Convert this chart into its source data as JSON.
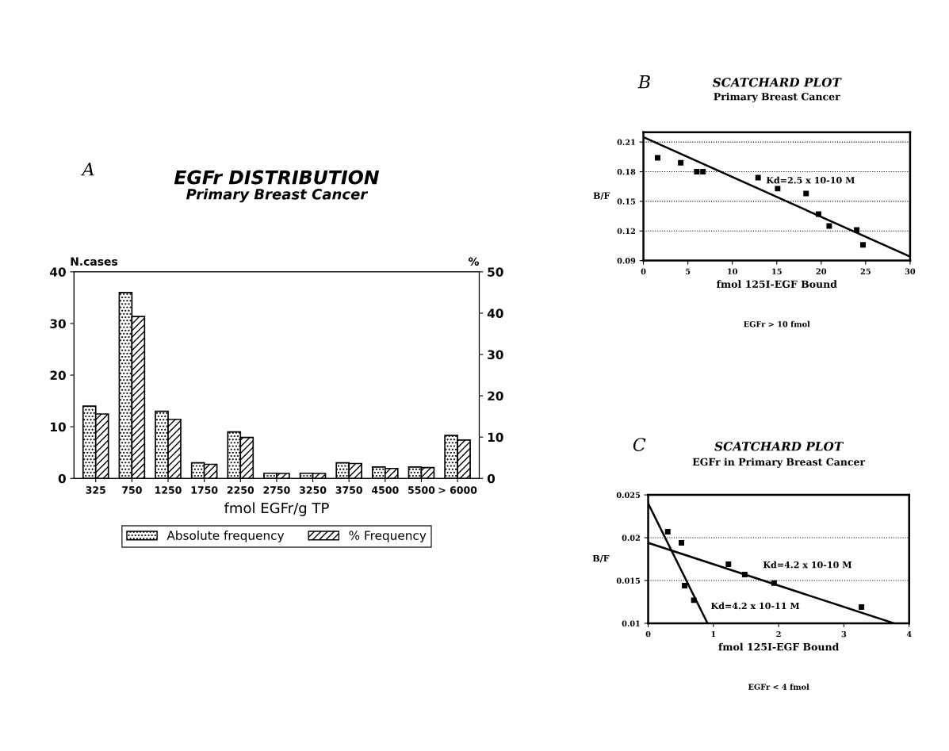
{
  "chart_data": [
    {
      "type": "bar",
      "title": "EGFr DISTRIBUTION",
      "subtitle": "Primary Breast Cancer",
      "annotations": [
        "A"
      ],
      "xlabel": "fmol EGFr/g TP",
      "ylabel": "N.cases",
      "y2label": "%",
      "categories": [
        "325",
        "750",
        "1250",
        "1750",
        "2250",
        "2750",
        "3250",
        "3750",
        "4500",
        "5500",
        "> 6000"
      ],
      "series": [
        {
          "name": "Absolute frequency",
          "color": "#000000",
          "values": [
            14,
            36,
            13,
            3,
            9,
            1,
            1,
            3,
            2.2,
            2.2,
            8.3
          ]
        },
        {
          "name": "% Frequency",
          "color": "#000000",
          "axis": "y2",
          "values": [
            15.6,
            39.2,
            14.3,
            3.4,
            9.9,
            1.2,
            1.2,
            3.6,
            2.4,
            2.6,
            9.3
          ]
        }
      ],
      "ylim": [
        0,
        40
      ],
      "yticks": [
        0,
        10,
        20,
        30,
        40
      ],
      "y2lim": [
        0,
        50
      ],
      "y2ticks": [
        0,
        10,
        20,
        30,
        40,
        50
      ],
      "legend": "bottom"
    },
    {
      "type": "scatter",
      "title": "SCATCHARD PLOT",
      "subtitle": "Primary Breast Cancer",
      "annotations": [
        "B",
        "EGFr > 10 fmol",
        "Kd=2.5 x 10-10 M"
      ],
      "xlabel": "fmol 125I-EGF Bound",
      "ylabel": "B/F",
      "series": [
        {
          "type": "scatter",
          "color": "#000000",
          "marker": "square",
          "x": [
            1.6,
            4.2,
            6.0,
            6.7,
            12.9,
            15.1,
            18.3,
            19.7,
            20.9,
            24.0,
            24.7
          ],
          "values": [
            0.194,
            0.189,
            0.18,
            0.18,
            0.174,
            0.163,
            0.158,
            0.137,
            0.125,
            0.121,
            0.106
          ]
        },
        {
          "type": "line",
          "color": "#000000",
          "line_style": "solid",
          "x": [
            0,
            30
          ],
          "values": [
            0.215,
            0.094
          ]
        }
      ],
      "xlim": [
        0,
        30
      ],
      "xticks": [
        0,
        5,
        10,
        15,
        20,
        25,
        30
      ],
      "ylim": [
        0.09,
        0.22
      ],
      "yticks": [
        0.09,
        0.12,
        0.15,
        0.18,
        0.21
      ],
      "grid": "y"
    },
    {
      "type": "scatter",
      "title": "SCATCHARD PLOT",
      "subtitle": "EGFr in Primary Breast Cancer",
      "annotations": [
        "C",
        "EGFr < 4 fmol",
        "Kd=4.2 x 10-10 M",
        "Kd=4.2 x 10-11 M"
      ],
      "xlabel": "fmol 125I-EGF Bound",
      "ylabel": "B/F",
      "series": [
        {
          "type": "scatter",
          "color": "#000000",
          "marker": "square",
          "x": [
            0.3,
            0.51,
            0.56,
            0.7,
            1.23,
            1.48,
            1.93,
            3.27
          ],
          "values": [
            0.0207,
            0.0194,
            0.0144,
            0.0127,
            0.0169,
            0.0157,
            0.0147,
            0.0119
          ]
        },
        {
          "type": "line",
          "color": "#000000",
          "line_style": "solid",
          "x": [
            0,
            0.91
          ],
          "values": [
            0.024,
            0.01
          ]
        },
        {
          "type": "line",
          "color": "#000000",
          "line_style": "solid",
          "x": [
            0,
            3.77
          ],
          "values": [
            0.0194,
            0.01
          ]
        }
      ],
      "xlim": [
        0,
        4
      ],
      "xticks": [
        0,
        1,
        2,
        3,
        4
      ],
      "ylim": [
        0.01,
        0.025
      ],
      "yticks": [
        0.01,
        0.015,
        0.02,
        0.025
      ],
      "grid": "y"
    }
  ]
}
